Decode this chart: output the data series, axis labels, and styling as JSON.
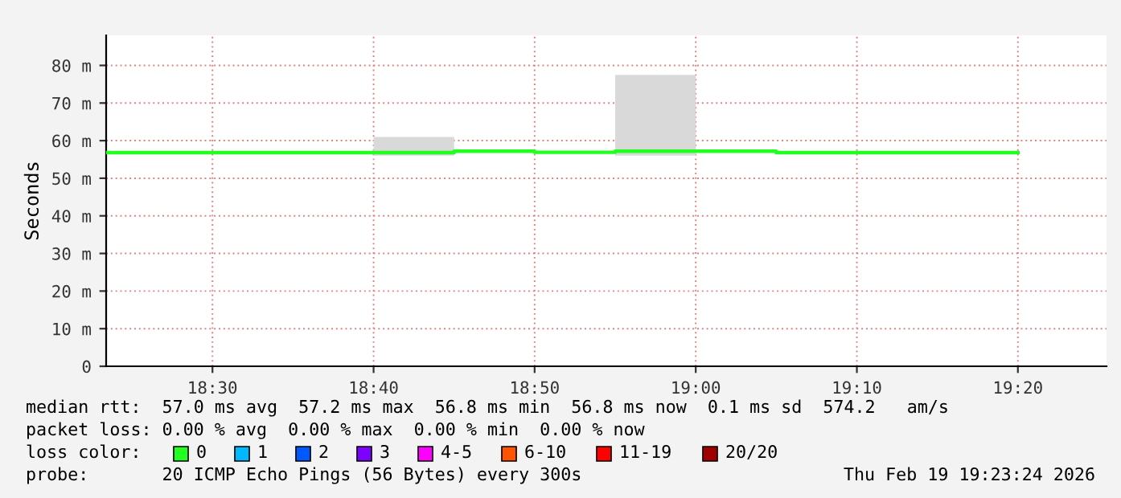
{
  "chart_data": {
    "type": "step",
    "ylabel": "Seconds",
    "x": [
      18.39,
      18.4167,
      18.5,
      18.5833,
      18.6667,
      18.75,
      18.8333,
      18.9167,
      19.0,
      19.0833,
      19.1667,
      19.25,
      19.3333
    ],
    "series": [
      {
        "name": "0",
        "color": "#20ff20",
        "values": [
          56.8,
          56.8,
          56.8,
          56.8,
          56.8,
          57.2,
          56.9,
          57.2,
          57.2,
          56.8,
          56.8,
          56.8,
          56.8
        ],
        "lower": [
          56.8,
          56.8,
          56.8,
          56.8,
          56.0,
          57.2,
          56.9,
          56.0,
          57.2,
          56.8,
          56.8,
          56.8,
          56.8
        ],
        "upper": [
          56.8,
          56.8,
          56.8,
          56.8,
          61.0,
          57.2,
          56.9,
          77.5,
          57.2,
          56.8,
          56.8,
          56.8,
          56.8
        ]
      },
      {
        "name": "1",
        "color": "#00b8ff",
        "values": [
          null,
          null,
          null,
          null,
          null,
          null,
          null,
          null,
          null,
          null,
          null,
          null,
          null
        ]
      },
      {
        "name": "2",
        "color": "#0059ff",
        "values": [
          null,
          null,
          null,
          null,
          null,
          null,
          null,
          null,
          null,
          null,
          null,
          null,
          null
        ]
      },
      {
        "name": "3",
        "color": "#7e00ff",
        "values": [
          null,
          null,
          null,
          null,
          null,
          null,
          null,
          null,
          null,
          null,
          null,
          null,
          null
        ]
      },
      {
        "name": "4-5",
        "color": "#ff00ff",
        "values": [
          null,
          null,
          null,
          null,
          null,
          null,
          null,
          null,
          null,
          null,
          null,
          null,
          null
        ]
      },
      {
        "name": "6-10",
        "color": "#ff5500",
        "values": [
          null,
          null,
          null,
          null,
          null,
          null,
          null,
          null,
          null,
          null,
          null,
          null,
          null
        ]
      },
      {
        "name": "11-19",
        "color": "#ff0000",
        "values": [
          null,
          null,
          null,
          null,
          null,
          null,
          null,
          null,
          null,
          null,
          null,
          null,
          null
        ]
      },
      {
        "name": "20/20",
        "color": "#a10000",
        "values": [
          null,
          null,
          null,
          null,
          null,
          null,
          null,
          null,
          null,
          null,
          null,
          null,
          null
        ]
      }
    ],
    "xlim": [
      18.39,
      19.425
    ],
    "xticks": [
      {
        "value": 18.5,
        "label": "18:30"
      },
      {
        "value": 18.6667,
        "label": "18:40"
      },
      {
        "value": 18.8333,
        "label": "18:50"
      },
      {
        "value": 19.0,
        "label": "19:00"
      },
      {
        "value": 19.1667,
        "label": "19:10"
      },
      {
        "value": 19.3333,
        "label": "19:20"
      }
    ],
    "ylim": [
      0,
      88
    ],
    "yticks": [
      0,
      {
        "value": 10,
        "label": "10 m"
      },
      {
        "value": 20,
        "label": "20 m"
      },
      {
        "value": 30,
        "label": "30 m"
      },
      {
        "value": 40,
        "label": "40 m"
      },
      {
        "value": 50,
        "label": "50 m"
      },
      {
        "value": 60,
        "label": "60 m"
      },
      {
        "value": 70,
        "label": "70 m"
      },
      {
        "value": 80,
        "label": "80 m"
      }
    ],
    "grid": true,
    "legend": "bottom",
    "annotations": [
      "median rtt:  57.0 ms avg  57.2 ms max  56.8 ms min  56.8 ms now  0.1 ms sd  574.2   am/s",
      "packet loss: 0.00 % avg  0.00 % max  0.00 % min  0.00 % now",
      "loss color:",
      "probe:       20 ICMP Echo Pings (56 Bytes) every 300s",
      "Thu Feb 19 19:23:24 2026"
    ]
  }
}
